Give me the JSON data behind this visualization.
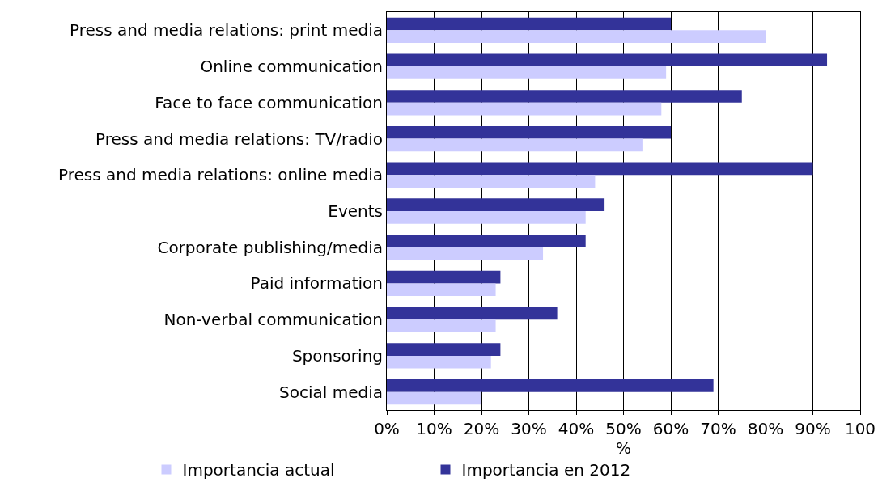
{
  "chart_data": {
    "type": "bar",
    "orientation": "horizontal",
    "xlabel": "%",
    "categories": [
      "Press and media relations: print media",
      "Online communication",
      "Face to face communication",
      "Press and media relations: TV/radio",
      "Press and media relations: online media",
      "Events",
      "Corporate publishing/media",
      "Paid information",
      "Non-verbal communication",
      "Sponsoring",
      "Social media"
    ],
    "series": [
      {
        "name": "Importancia actual",
        "color": "#ccccff",
        "values": [
          80,
          59,
          58,
          54,
          44,
          42,
          33,
          23,
          23,
          22,
          20
        ]
      },
      {
        "name": "Importancia en 2012",
        "color": "#333399",
        "values": [
          60,
          93,
          75,
          60,
          90,
          46,
          42,
          24,
          36,
          24,
          69
        ]
      }
    ],
    "xlim": [
      0,
      100
    ],
    "xticks": [
      {
        "value": 0,
        "label": "0%"
      },
      {
        "value": 10,
        "label": "10%"
      },
      {
        "value": 20,
        "label": "20%"
      },
      {
        "value": 30,
        "label": "30%"
      },
      {
        "value": 40,
        "label": "40%"
      },
      {
        "value": 50,
        "label": "50%"
      },
      {
        "value": 60,
        "label": "60%"
      },
      {
        "value": 70,
        "label": "70%"
      },
      {
        "value": 80,
        "label": "80%"
      },
      {
        "value": 90,
        "label": "90%"
      },
      100
    ],
    "grid": "x",
    "legend": "bottom"
  }
}
